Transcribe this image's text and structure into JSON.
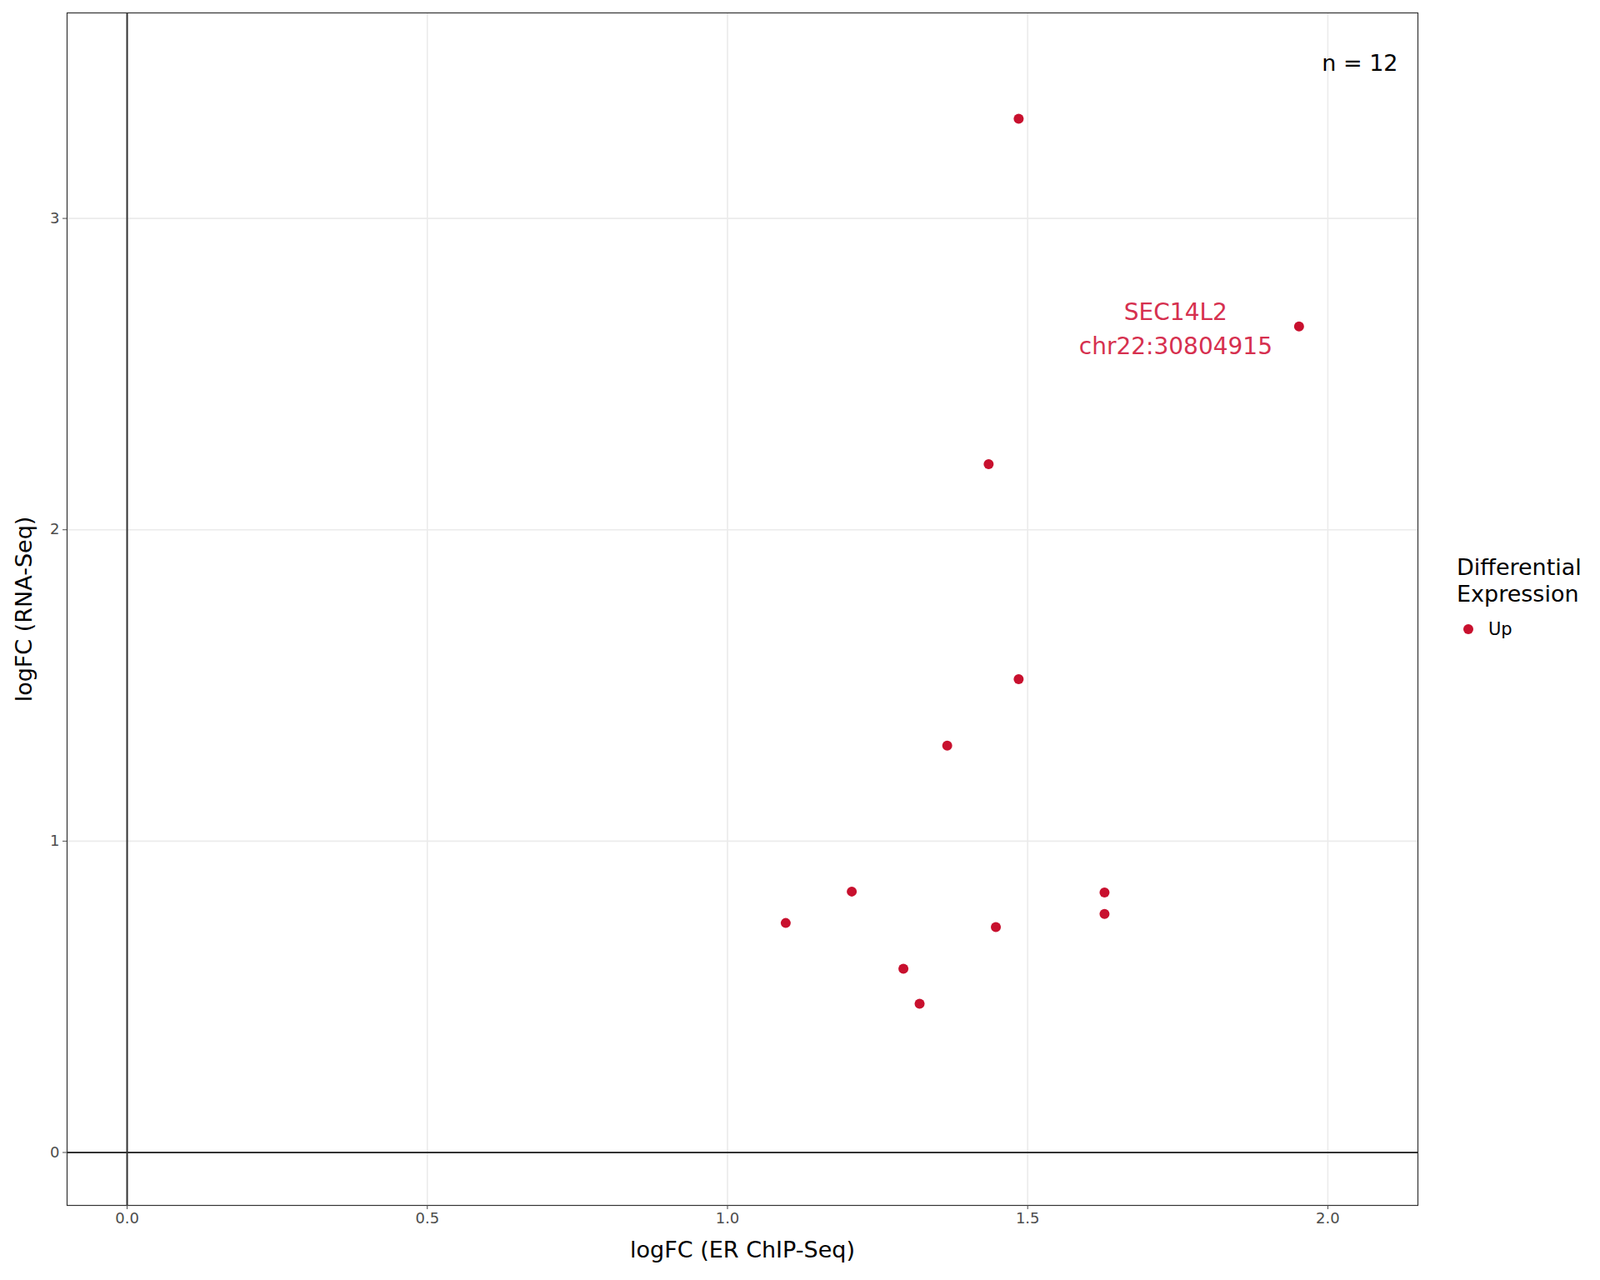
{
  "chart_data": {
    "type": "scatter",
    "x_label": "logFC (ER ChIP-Seq)",
    "y_label": "logFC (RNA-Seq)",
    "legend_title": "Differential Expression",
    "legend": "right",
    "series": [
      {
        "name": "Up",
        "color": "#c8102e",
        "marker": "circle",
        "x": [
          1.485,
          1.952,
          1.435,
          1.485,
          1.366,
          1.207,
          1.097,
          1.628,
          1.628,
          1.447,
          1.293,
          1.32
        ],
        "y": [
          3.32,
          2.653,
          2.211,
          1.52,
          1.307,
          0.838,
          0.737,
          0.835,
          0.766,
          0.724,
          0.59,
          0.478
        ]
      }
    ],
    "annotations": [
      {
        "x": 1.952,
        "y": 2.653,
        "text": "SEC14L2\nchr22:30804915",
        "color": "#d6304f"
      },
      {
        "text": "n = 12",
        "position": "top-right"
      }
    ],
    "reference_lines": {
      "x": [
        0
      ],
      "y": [
        0
      ]
    },
    "xlim": [
      -0.1,
      2.15
    ],
    "ylim": [
      -0.17,
      3.66
    ],
    "xticks": [
      {
        "value": 0,
        "label": "0.0"
      },
      {
        "value": 0.5,
        "label": "0.5"
      },
      {
        "value": 1,
        "label": "1.0"
      },
      {
        "value": 1.5,
        "label": "1.5"
      },
      {
        "value": 2,
        "label": "2.0"
      }
    ],
    "yticks": [
      0,
      1,
      2,
      3
    ],
    "grid": true
  }
}
